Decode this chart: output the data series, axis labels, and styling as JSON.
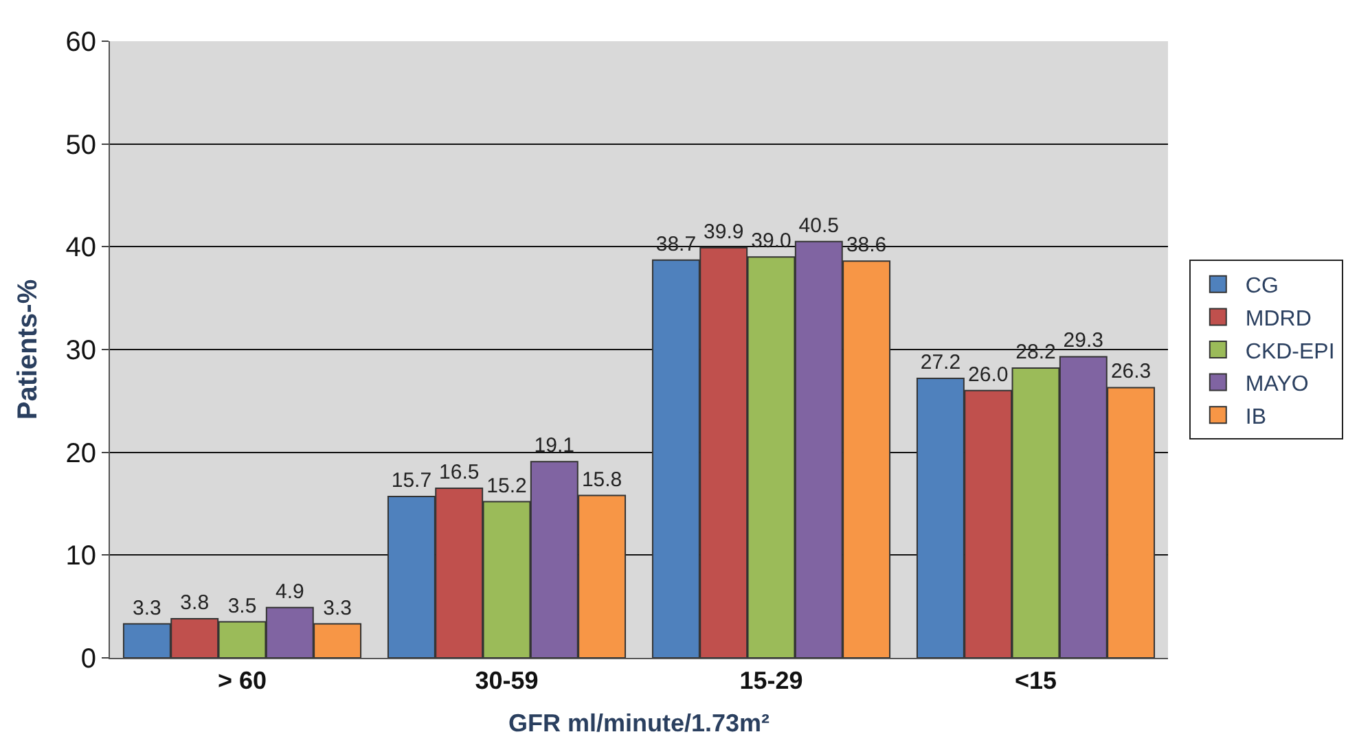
{
  "chart_data": {
    "type": "bar",
    "xlabel": "GFR ml/minute/1.73m²",
    "ylabel": "Patients-%",
    "categories": [
      "> 60",
      "30-59",
      "15-29",
      "<15"
    ],
    "series": [
      {
        "name": "CG",
        "color": "#4f81bd",
        "values": [
          3.3,
          15.7,
          38.7,
          27.2
        ],
        "value_labels": [
          "3.3",
          "15.7",
          "38.7",
          "27.2"
        ]
      },
      {
        "name": "MDRD",
        "color": "#c0504d",
        "values": [
          3.8,
          16.5,
          39.9,
          26.0
        ],
        "value_labels": [
          "3.8",
          "16.5",
          "39.9",
          "26.0"
        ]
      },
      {
        "name": "CKD-EPI",
        "color": "#9bbb59",
        "values": [
          3.5,
          15.2,
          39.0,
          28.2
        ],
        "value_labels": [
          "3.5",
          "15.2",
          "39.0",
          "28.2"
        ]
      },
      {
        "name": "MAYO",
        "color": "#8064a2",
        "values": [
          4.9,
          19.1,
          40.5,
          29.3
        ],
        "value_labels": [
          "4.9",
          "19.1",
          "40.5",
          "29.3"
        ]
      },
      {
        "name": "IB",
        "color": "#f79646",
        "values": [
          3.3,
          15.8,
          38.6,
          26.3
        ],
        "value_labels": [
          "3.3",
          "15.8",
          "38.6",
          "26.3"
        ]
      }
    ],
    "ylim": [
      0,
      60
    ],
    "yticks": [
      0,
      10,
      20,
      30,
      40,
      50,
      60
    ],
    "grid": "y",
    "legend": "right"
  }
}
